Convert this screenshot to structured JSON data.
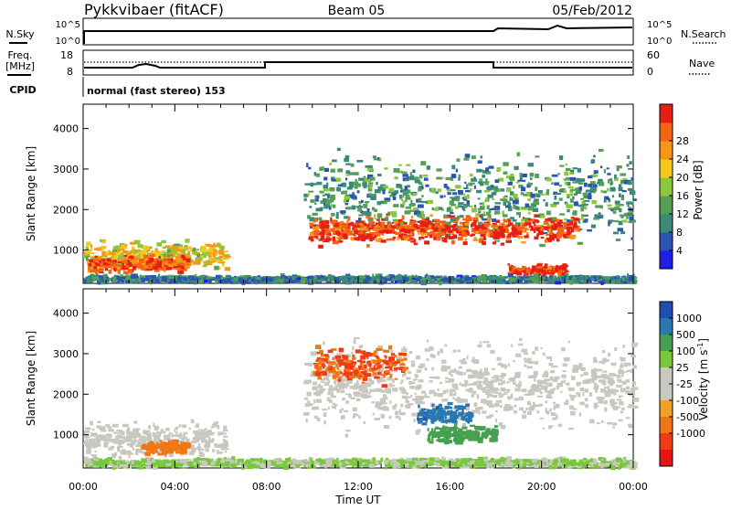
{
  "header": {
    "station": "Pykkvibaer (fitACF)",
    "beam": "Beam 05",
    "date": "05/Feb/2012"
  },
  "status": {
    "nsky_label": "N.Sky",
    "nsky_ticks": [
      "10^5",
      "10^0"
    ],
    "nsearch_label": "N.Search",
    "nsearch_ticks": [
      "10^5",
      "10^0"
    ],
    "freq_label_line1": "Freq.",
    "freq_label_line2": "[MHz]",
    "freq_ticks": [
      "18",
      "8"
    ],
    "nave_label": "Nave",
    "nave_ticks": [
      "60",
      "0"
    ],
    "cpid_label": "CPID",
    "cpid_value": "normal (fast stereo) 153"
  },
  "axes": {
    "xlabel": "Time UT",
    "x_ticks": [
      "00:00",
      "04:00",
      "08:00",
      "12:00",
      "16:00",
      "20:00",
      "00:00"
    ],
    "ylabel": "Slant Range [km]",
    "y_ticks": [
      "1000",
      "2000",
      "3000",
      "4000"
    ]
  },
  "power_colorbar": {
    "label": "Power [dB]",
    "ticks": [
      "4",
      "8",
      "12",
      "16",
      "20",
      "24",
      "28"
    ],
    "colors": [
      "#1e1ee6",
      "#2a55b0",
      "#3a8a7a",
      "#55a055",
      "#8cc83c",
      "#f5c81e",
      "#f59614",
      "#f56414",
      "#e61e14"
    ]
  },
  "velocity_colorbar": {
    "label": "Velocity  [m s",
    "label_exp": "-1",
    "label_end": "]",
    "ticks": [
      "1000",
      "500",
      "100",
      "25",
      "-25",
      "-100",
      "-500",
      "-1000"
    ],
    "colors": [
      "#1e50b4",
      "#2878b4",
      "#46a050",
      "#78c83c",
      "#c8c8c0",
      "#c8c8c0",
      "#f0a028",
      "#f07814",
      "#f03c14",
      "#e61414"
    ]
  },
  "chart_data": [
    {
      "type": "heatmap",
      "title": "Power",
      "xlabel": "Time UT",
      "ylabel": "Slant Range [km]",
      "xlim": [
        0,
        24
      ],
      "ylim": [
        180,
        4600
      ],
      "clim": [
        0,
        30
      ],
      "colorbar_label": "Power [dB]",
      "regions": [
        {
          "t0": 0.0,
          "t1": 6.2,
          "r_center": 850,
          "r_width": 300,
          "value": 18
        },
        {
          "t0": 0.2,
          "t1": 4.5,
          "r_center": 650,
          "r_width": 180,
          "value": 26
        },
        {
          "t0": 9.6,
          "t1": 24.0,
          "r_center": 2300,
          "r_width": 900,
          "value": 10
        },
        {
          "t0": 9.8,
          "t1": 21.5,
          "r_center": 1500,
          "r_width": 300,
          "value": 27
        },
        {
          "t0": 18.5,
          "t1": 21.0,
          "r_center": 500,
          "r_width": 120,
          "value": 28
        },
        {
          "t0": 0.0,
          "t1": 24.0,
          "r_center": 280,
          "r_width": 80,
          "value": 8
        }
      ]
    },
    {
      "type": "heatmap",
      "title": "Velocity",
      "xlabel": "Time UT",
      "ylabel": "Slant Range [km]",
      "xlim": [
        0,
        24
      ],
      "ylim": [
        180,
        4600
      ],
      "clim": [
        -1000,
        1000
      ],
      "colorbar_label": "Velocity [m s^-1]",
      "regions": [
        {
          "t0": 0.0,
          "t1": 6.2,
          "r_center": 850,
          "r_width": 400,
          "value": 0
        },
        {
          "t0": 2.5,
          "t1": 4.5,
          "r_center": 700,
          "r_width": 150,
          "value": -300
        },
        {
          "t0": 9.6,
          "t1": 24.0,
          "r_center": 2200,
          "r_width": 900,
          "value": 0
        },
        {
          "t0": 10.0,
          "t1": 14.0,
          "r_center": 2700,
          "r_width": 400,
          "value": -500
        },
        {
          "t0": 14.5,
          "t1": 16.8,
          "r_center": 1500,
          "r_width": 250,
          "value": 800
        },
        {
          "t0": 15.0,
          "t1": 18.0,
          "r_center": 1000,
          "r_width": 200,
          "value": 150
        },
        {
          "t0": 0.0,
          "t1": 24.0,
          "r_center": 300,
          "r_width": 100,
          "value": 30
        }
      ]
    }
  ]
}
